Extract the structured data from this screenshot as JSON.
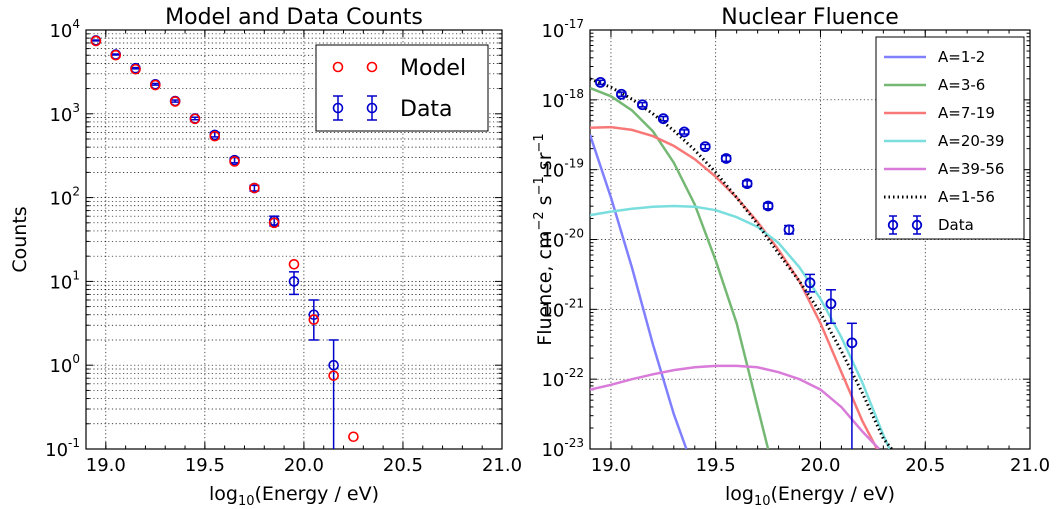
{
  "chart_data": [
    {
      "type": "scatter",
      "title": "Model and Data Counts",
      "xlabel_prefix": "log",
      "xlabel_sub": "10",
      "xlabel_rest": "(Energy / eV)",
      "ylabel": "Counts",
      "xlim": [
        18.9,
        21.0
      ],
      "ylim_log10": [
        -1,
        4
      ],
      "yscale": "log",
      "grid": "minor-dotted",
      "legend": "top-right",
      "xticks": [
        {
          "value": 19.0,
          "label": "19.0"
        },
        {
          "value": 19.5,
          "label": "19.5"
        },
        {
          "value": 20.0,
          "label": "20.0"
        },
        {
          "value": 20.5,
          "label": "20.5"
        },
        {
          "value": 21.0,
          "label": "21.0"
        }
      ],
      "yticks": [
        {
          "exp": -1,
          "base": "10",
          "sup": "-1"
        },
        {
          "exp": 0,
          "base": "10",
          "sup": "0"
        },
        {
          "exp": 1,
          "base": "10",
          "sup": "1"
        },
        {
          "exp": 2,
          "base": "10",
          "sup": "2"
        },
        {
          "exp": 3,
          "base": "10",
          "sup": "3"
        },
        {
          "exp": 4,
          "base": "10",
          "sup": "4"
        }
      ],
      "series": [
        {
          "name": "Model",
          "color": "#ff0000",
          "marker": "open-circle",
          "x": [
            18.95,
            19.05,
            19.15,
            19.25,
            19.35,
            19.45,
            19.55,
            19.65,
            19.75,
            19.85,
            19.95,
            20.05,
            20.15,
            20.25
          ],
          "y": [
            7400,
            5000,
            3400,
            2200,
            1400,
            870,
            540,
            270,
            130,
            50,
            16,
            3.5,
            0.75,
            0.14
          ]
        },
        {
          "name": "Data",
          "color": "#0000cc",
          "marker": "open-circle-errorbar",
          "x": [
            18.95,
            19.05,
            19.15,
            19.25,
            19.35,
            19.45,
            19.55,
            19.65,
            19.75,
            19.85,
            19.95,
            20.05,
            20.15
          ],
          "y": [
            7500,
            5100,
            3500,
            2250,
            1420,
            880,
            560,
            280,
            130,
            53,
            10,
            4,
            1
          ],
          "yerr_low": [
            7410,
            5030,
            3440,
            2200,
            1380,
            850,
            530,
            260,
            120,
            46,
            7,
            2,
            0.0001
          ],
          "yerr_high": [
            7590,
            5170,
            3560,
            2300,
            1460,
            910,
            600,
            300,
            140,
            60,
            13,
            6,
            2
          ]
        }
      ]
    },
    {
      "type": "line",
      "title": "Nuclear Fluence",
      "xlabel_prefix": "log",
      "xlabel_sub": "10",
      "xlabel_rest": "(Energy / eV)",
      "ylabel_parts": [
        "Fluence, cm",
        "−2",
        " s",
        "−1",
        " sr",
        "−1"
      ],
      "xlim": [
        18.9,
        21.0
      ],
      "ylim_log10": [
        -23,
        -17
      ],
      "yscale": "log",
      "grid": "major-dotted",
      "legend": "top-right",
      "xticks": [
        {
          "value": 19.0,
          "label": "19.0"
        },
        {
          "value": 19.5,
          "label": "19.5"
        },
        {
          "value": 20.0,
          "label": "20.0"
        },
        {
          "value": 20.5,
          "label": "20.5"
        },
        {
          "value": 21.0,
          "label": "21.0"
        }
      ],
      "yticks": [
        {
          "exp": -23,
          "base": "10",
          "sup": "-23"
        },
        {
          "exp": -22,
          "base": "10",
          "sup": "-22"
        },
        {
          "exp": -21,
          "base": "10",
          "sup": "-21"
        },
        {
          "exp": -20,
          "base": "10",
          "sup": "-20"
        },
        {
          "exp": -19,
          "base": "10",
          "sup": "-19"
        },
        {
          "exp": -18,
          "base": "10",
          "sup": "-18"
        },
        {
          "exp": -17,
          "base": "10",
          "sup": "-17"
        }
      ],
      "series": [
        {
          "name": "A=1-2",
          "color": "#8080ff",
          "style": "solid",
          "x": [
            18.9,
            19.0,
            19.1,
            19.2,
            19.3,
            19.36
          ],
          "log10y": [
            -18.5,
            -19.4,
            -20.4,
            -21.5,
            -22.5,
            -23.0
          ]
        },
        {
          "name": "A=3-6",
          "color": "#74b874",
          "style": "solid",
          "x": [
            18.9,
            19.0,
            19.1,
            19.2,
            19.3,
            19.4,
            19.5,
            19.6,
            19.7,
            19.75
          ],
          "log10y": [
            -17.83,
            -17.95,
            -18.15,
            -18.45,
            -18.9,
            -19.5,
            -20.3,
            -21.2,
            -22.4,
            -23.0
          ]
        },
        {
          "name": "A=7-19",
          "color": "#f87878",
          "style": "solid",
          "x": [
            18.9,
            19.0,
            19.1,
            19.2,
            19.3,
            19.4,
            19.5,
            19.6,
            19.7,
            19.8,
            19.9,
            20.0,
            20.1,
            20.2,
            20.27
          ],
          "log10y": [
            -18.4,
            -18.39,
            -18.43,
            -18.52,
            -18.66,
            -18.85,
            -19.1,
            -19.4,
            -19.75,
            -20.15,
            -20.6,
            -21.2,
            -21.9,
            -22.6,
            -23.0
          ]
        },
        {
          "name": "A=20-39",
          "color": "#7adede",
          "style": "solid",
          "x": [
            18.9,
            19.0,
            19.1,
            19.2,
            19.3,
            19.4,
            19.5,
            19.6,
            19.7,
            19.8,
            19.9,
            20.0,
            20.1,
            20.2,
            20.3,
            20.33
          ],
          "log10y": [
            -19.65,
            -19.6,
            -19.56,
            -19.53,
            -19.52,
            -19.53,
            -19.58,
            -19.68,
            -19.82,
            -20.05,
            -20.4,
            -20.85,
            -21.4,
            -22.05,
            -22.8,
            -23.0
          ]
        },
        {
          "name": "A=39-56",
          "color": "#d97bd9",
          "style": "solid",
          "x": [
            18.9,
            19.0,
            19.1,
            19.2,
            19.3,
            19.4,
            19.5,
            19.6,
            19.7,
            19.8,
            19.9,
            20.0,
            20.1,
            20.2,
            20.28
          ],
          "log10y": [
            -22.15,
            -22.08,
            -22.0,
            -21.93,
            -21.87,
            -21.83,
            -21.81,
            -21.81,
            -21.83,
            -21.9,
            -22.0,
            -22.15,
            -22.4,
            -22.75,
            -23.0
          ]
        },
        {
          "name": "A=1-56",
          "color": "#000000",
          "style": "dotted",
          "x": [
            18.9,
            19.0,
            19.1,
            19.2,
            19.3,
            19.4,
            19.5,
            19.6,
            19.7,
            19.8,
            19.9,
            20.0,
            20.1,
            20.2,
            20.3,
            20.34
          ],
          "log10y": [
            -17.7,
            -17.82,
            -17.99,
            -18.2,
            -18.44,
            -18.72,
            -19.04,
            -19.4,
            -19.78,
            -20.2,
            -20.6,
            -21.05,
            -21.6,
            -22.2,
            -22.85,
            -23.0
          ]
        },
        {
          "name": "Data",
          "color": "#0000cc",
          "style": "errorbar",
          "x": [
            18.95,
            19.05,
            19.15,
            19.25,
            19.35,
            19.45,
            19.55,
            19.65,
            19.75,
            19.85,
            19.95,
            20.05,
            20.15
          ],
          "log10y": [
            -17.75,
            -17.92,
            -18.07,
            -18.27,
            -18.46,
            -18.67,
            -18.84,
            -19.2,
            -19.52,
            -19.86,
            -20.62,
            -20.92,
            -21.48
          ],
          "log10err_low": [
            -17.78,
            -17.95,
            -18.1,
            -18.3,
            -18.49,
            -18.7,
            -18.88,
            -19.24,
            -19.56,
            -19.92,
            -20.75,
            -21.2,
            -23.1
          ],
          "log10err_high": [
            -17.72,
            -17.89,
            -18.04,
            -18.24,
            -18.43,
            -18.64,
            -18.8,
            -19.16,
            -19.48,
            -19.8,
            -20.5,
            -20.72,
            -21.2
          ]
        }
      ]
    }
  ]
}
